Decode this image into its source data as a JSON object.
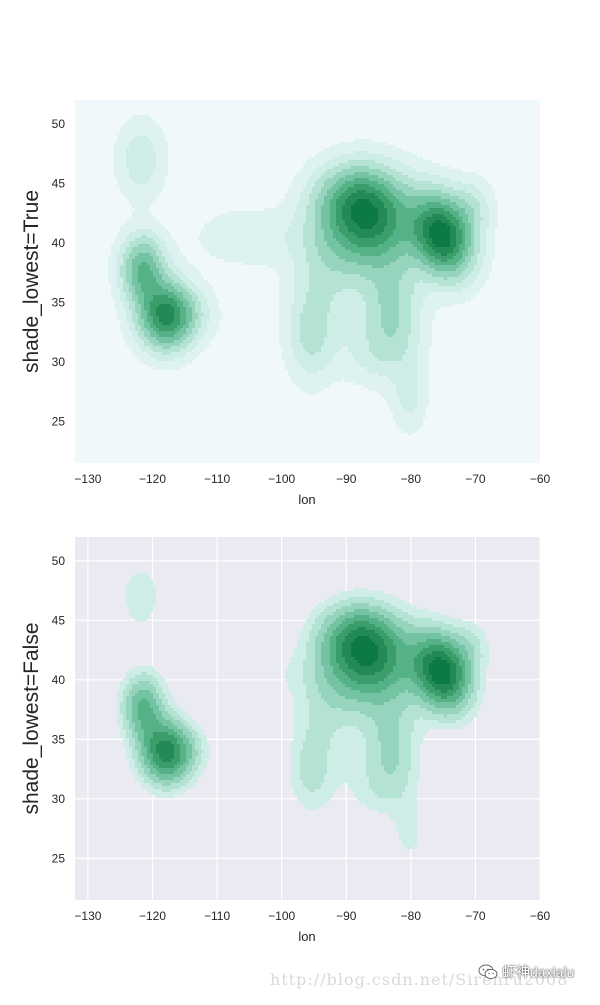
{
  "chart_data": [
    {
      "type": "kde_contour",
      "ylabel": "shade_lowest=True",
      "xlabel": "lon",
      "xlim": [
        -132,
        -60
      ],
      "ylim": [
        21.5,
        52
      ],
      "xticks": [
        -130,
        -120,
        -110,
        -100,
        -90,
        -80,
        -70,
        -60
      ],
      "yticks": [
        25,
        30,
        35,
        40,
        45,
        50
      ],
      "grid": false,
      "background": "#f0f8fc",
      "shade_lowest": true,
      "density_peaks": [
        {
          "lon": -121.8,
          "lat": 47.0
        },
        {
          "lon": -121.5,
          "lat": 37.8
        },
        {
          "lon": -118.0,
          "lat": 33.9
        },
        {
          "lon": -86.5,
          "lat": 41.9
        },
        {
          "lon": -75.2,
          "lat": 40.6
        },
        {
          "lon": -80.2,
          "lat": 27.0
        }
      ]
    },
    {
      "type": "kde_contour",
      "ylabel": "shade_lowest=False",
      "xlabel": "lon",
      "xlim": [
        -132,
        -60
      ],
      "ylim": [
        21.5,
        52
      ],
      "xticks": [
        -130,
        -120,
        -110,
        -100,
        -90,
        -80,
        -70,
        -60
      ],
      "yticks": [
        25,
        30,
        35,
        40,
        45,
        50
      ],
      "grid": true,
      "background": "#eaeaf2",
      "shade_lowest": false,
      "density_peaks": [
        {
          "lon": -121.8,
          "lat": 47.0
        },
        {
          "lon": -121.5,
          "lat": 37.8
        },
        {
          "lon": -118.0,
          "lat": 33.9
        },
        {
          "lon": -86.5,
          "lat": 41.9
        },
        {
          "lon": -75.2,
          "lat": 40.6
        },
        {
          "lon": -80.2,
          "lat": 27.0
        }
      ]
    }
  ],
  "colors": {
    "levels": [
      "#f0f8fc",
      "#def2f2",
      "#cdede6",
      "#b4e2d3",
      "#96d4bd",
      "#74c3a2",
      "#55b286",
      "#3a9d6a",
      "#238a55",
      "#0d7a44"
    ],
    "axis_background_top": "#f0f8fc",
    "axis_background_bottom": "#eaeaf2",
    "grid": "#ffffff"
  },
  "watermark": {
    "url": "http://blog.csdn.net/Sirenru2008",
    "brand": "虾神daxialu",
    "icon": "wechat-icon"
  }
}
